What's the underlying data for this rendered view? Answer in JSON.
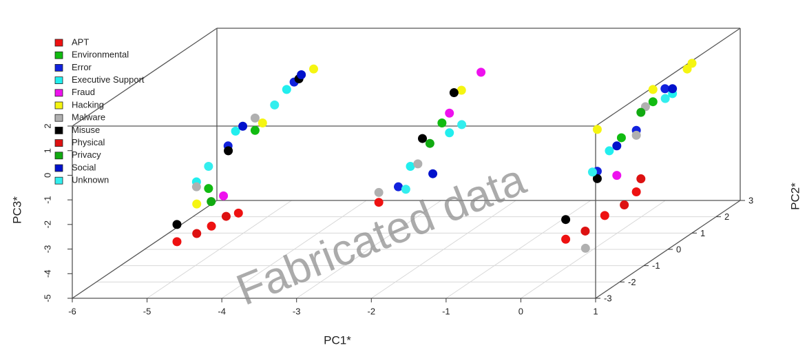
{
  "chart_data": {
    "type": "scatter3d",
    "x_label": "PC1*",
    "y_label": "PC2*",
    "z_label": "PC3*",
    "watermark": "Fabricated data",
    "xlim": [
      -6,
      1
    ],
    "xticks": [
      -6,
      -5,
      -4,
      -3,
      -2,
      -1,
      0,
      1
    ],
    "ylim": [
      -3,
      3
    ],
    "yticks": [
      -3,
      -2,
      -1,
      0,
      1,
      2,
      3
    ],
    "zlim": [
      -5,
      2
    ],
    "zticks": [
      -5,
      -4,
      -3,
      -2,
      -1,
      0,
      1,
      2
    ],
    "grid": true,
    "legend": "top-left",
    "series": [
      {
        "name": "APT",
        "color": "#ee1111",
        "x": [
          -4.6,
          -4.3,
          -4.1,
          0.6,
          0.8,
          0.9,
          -1.9
        ],
        "y": [
          -3,
          -2.5,
          -2,
          -3,
          -2,
          -1,
          -3
        ],
        "z": [
          -2.7,
          -2.4,
          -2.2,
          -2.6,
          -2.3,
          -2.0,
          -1.1
        ]
      },
      {
        "name": "Environmental",
        "color": "#11bb11",
        "x": [
          -4.5,
          -4.2,
          0.7,
          0.8,
          -1.7
        ],
        "y": [
          -2,
          -1,
          -1,
          0,
          -1
        ],
        "z": [
          -1.2,
          0.5,
          0.2,
          1.0,
          0.8
        ]
      },
      {
        "name": "Error",
        "color": "#1122dd",
        "x": [
          -4.4,
          -4.0,
          0.7,
          0.9,
          0.8,
          -1.8
        ],
        "y": [
          -1.5,
          0,
          -2,
          -1,
          0.5,
          -2.5
        ],
        "z": [
          0.2,
          1.8,
          -0.5,
          0.5,
          1.2,
          -0.8
        ]
      },
      {
        "name": "Executive Support",
        "color": "#22eeee",
        "x": [
          -4.5,
          -4.3,
          -4.1,
          0.7,
          0.9,
          -1.6,
          -1.8
        ],
        "y": [
          -2.5,
          -1.5,
          0,
          -1.5,
          0.5,
          -1,
          -2
        ],
        "z": [
          -0.6,
          0.8,
          1.5,
          0.0,
          1.0,
          0.4,
          -0.3
        ]
      },
      {
        "name": "Fraud",
        "color": "#ee11ee",
        "x": [
          -4.3,
          0.8,
          -1.5,
          -1.6
        ],
        "y": [
          -2,
          -1.5,
          0,
          -1
        ],
        "z": [
          -1.5,
          -1.0,
          2.2,
          1.2
        ]
      },
      {
        "name": "Hacking",
        "color": "#f5f511",
        "x": [
          -4.4,
          -4.1,
          -3.9,
          0.7,
          0.8,
          1.0,
          1.0,
          -1.6
        ],
        "y": [
          -2.8,
          -1,
          0.5,
          -2,
          0,
          0.8,
          1,
          -0.5
        ],
        "z": [
          -1.3,
          0.8,
          2.0,
          1.2,
          1.5,
          1.8,
          1.9,
          1.8
        ]
      },
      {
        "name": "Malware",
        "color": "#b0b0b0",
        "x": [
          -4.5,
          -4.2,
          0.8,
          0.9,
          0.7,
          -1.9,
          -1.7
        ],
        "y": [
          -2.5,
          -1,
          -2.8,
          -1,
          0,
          -3,
          -2
        ],
        "z": [
          -0.8,
          1.0,
          -3.1,
          0.3,
          0.8,
          -0.7,
          -0.2
        ]
      },
      {
        "name": "Misuse",
        "color": "#000000",
        "x": [
          -4.6,
          -4.3,
          -4.0,
          0.6,
          0.7,
          -1.8,
          -1.7
        ],
        "y": [
          -3,
          -1.8,
          0.2,
          -3,
          -2,
          -1.5,
          -0.5
        ],
        "z": [
          -2.0,
          0.2,
          1.8,
          -1.8,
          -0.8,
          0.5,
          1.7
        ]
      },
      {
        "name": "Physical",
        "color": "#dd1111",
        "x": [
          -4.4,
          -4.2,
          0.7,
          0.9,
          0.8
        ],
        "y": [
          -2.8,
          -2.2,
          -2.5,
          -1.5,
          -0.5
        ],
        "z": [
          -2.5,
          -2.2,
          -2.6,
          -2.2,
          -1.8
        ]
      },
      {
        "name": "Privacy",
        "color": "#11aa11",
        "x": [
          -4.4,
          0.8,
          -1.7
        ],
        "y": [
          -2.2,
          -0.5,
          -1.5
        ],
        "z": [
          -1.6,
          0.9,
          0.3
        ]
      },
      {
        "name": "Social",
        "color": "#0011cc",
        "x": [
          -4.3,
          -4.0,
          0.8,
          0.9,
          -1.5
        ],
        "y": [
          -1.2,
          0.3,
          -1.5,
          0.5,
          -2
        ],
        "z": [
          0.8,
          1.9,
          0.2,
          1.2,
          -0.6
        ]
      },
      {
        "name": "Unknown",
        "color": "#33eeee",
        "x": [
          -4.5,
          -4.1,
          0.7,
          0.9,
          -1.7,
          -1.5
        ],
        "y": [
          -2,
          -0.5,
          -2.2,
          0.2,
          -2.5,
          -0.8
        ],
        "z": [
          -0.3,
          1.2,
          -0.4,
          1.0,
          -0.9,
          0.6
        ]
      }
    ]
  }
}
